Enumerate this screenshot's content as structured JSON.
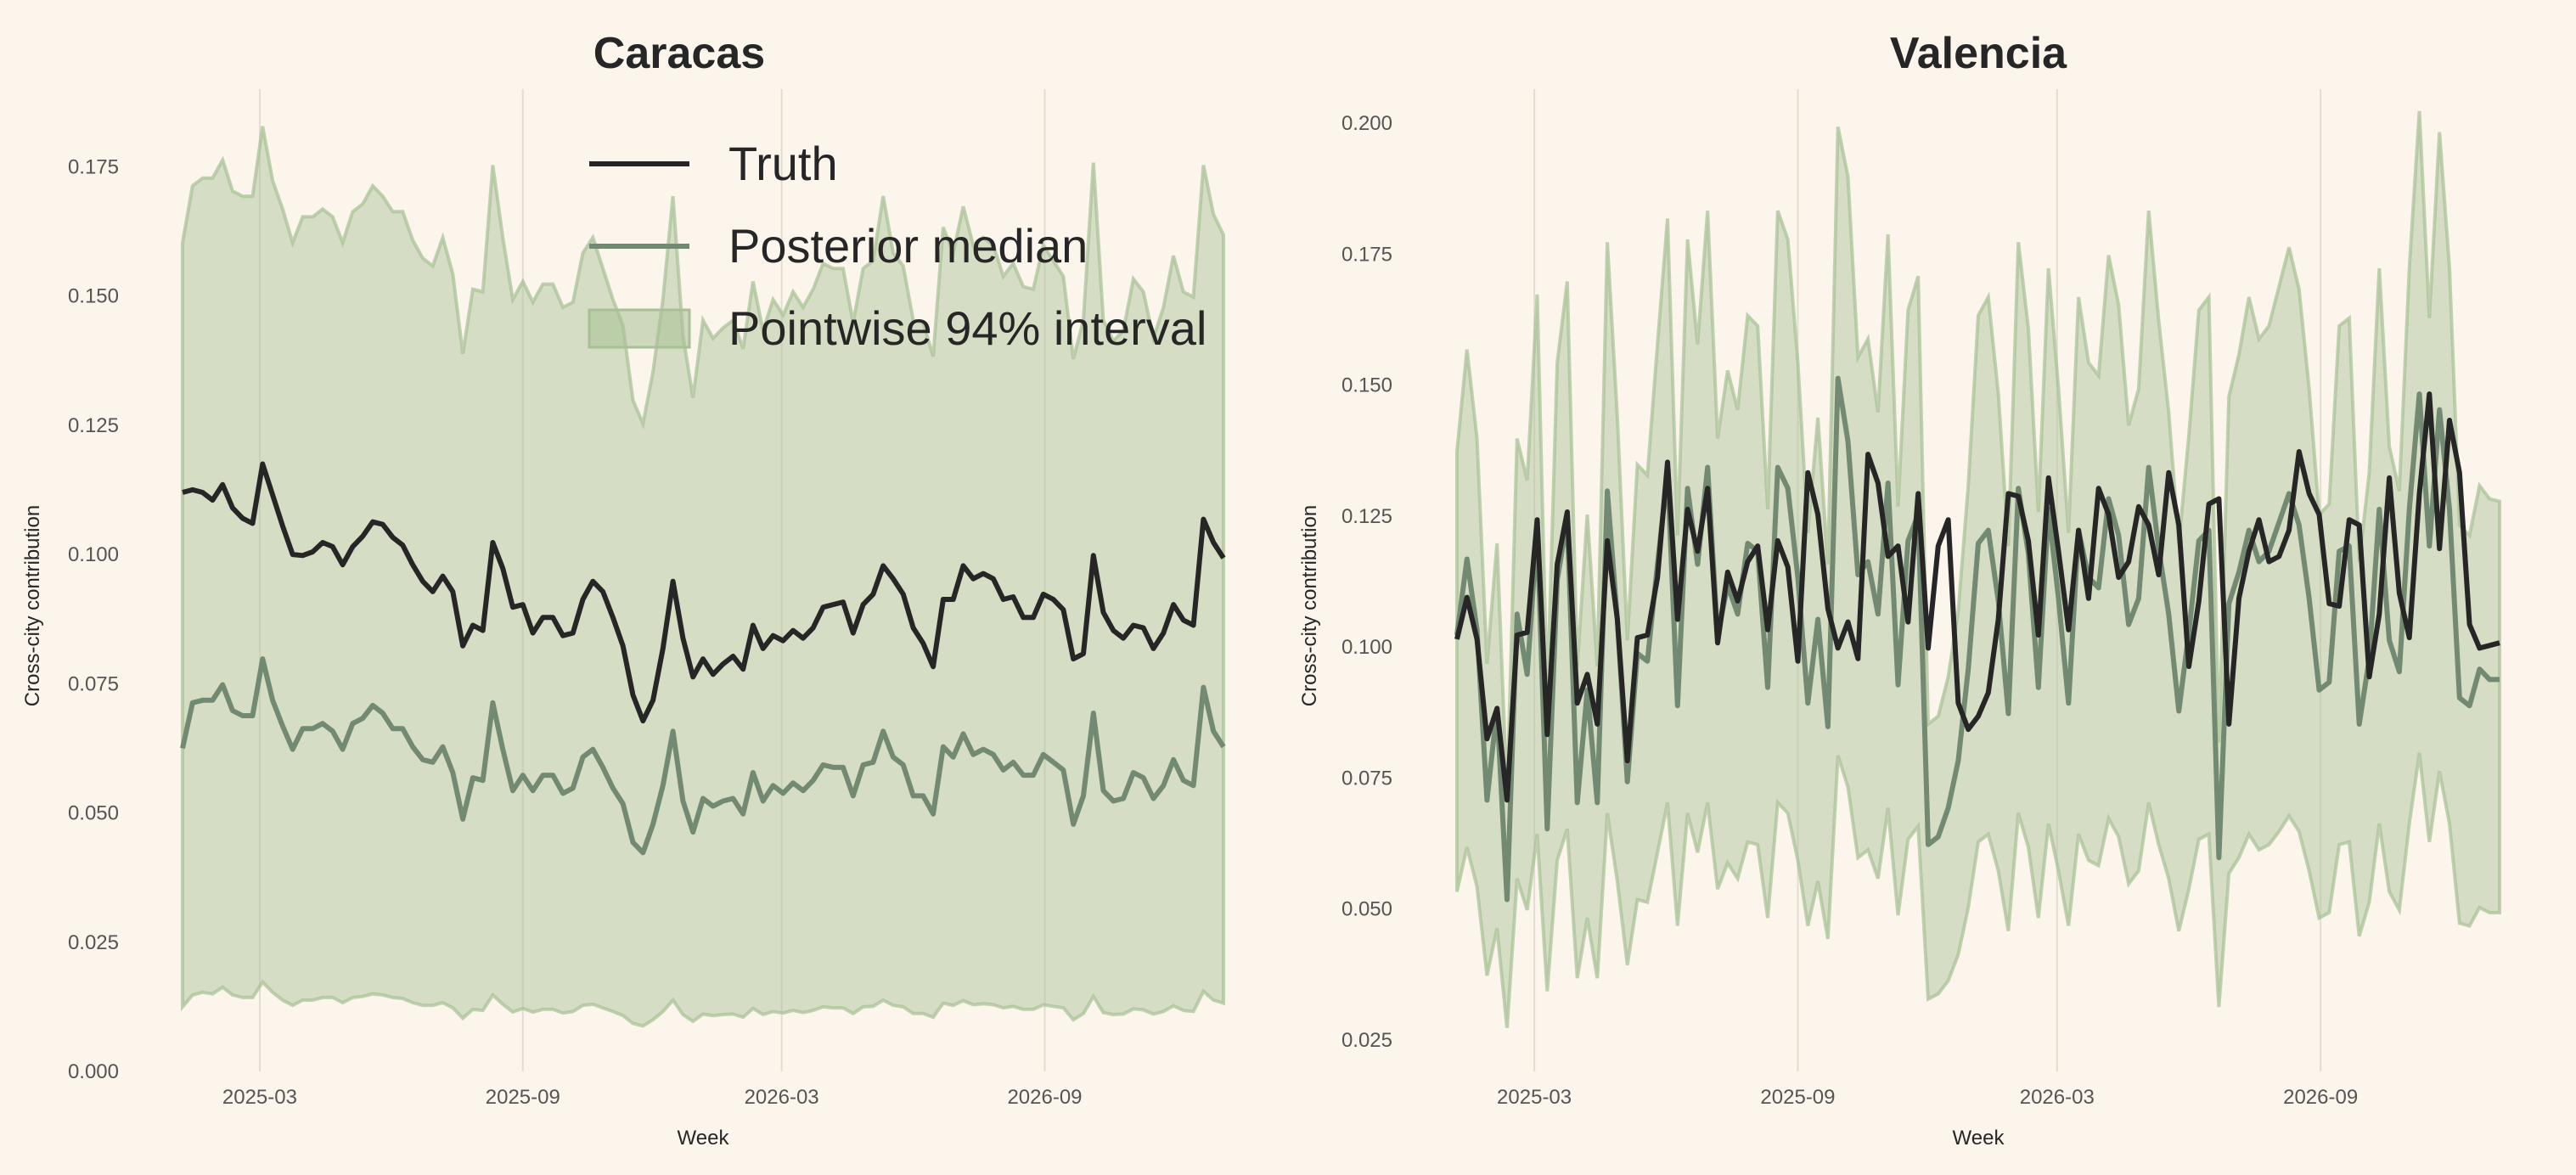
{
  "legend": {
    "truth": "Truth",
    "median": "Posterior median",
    "interval": "Pointwise 94% interval"
  },
  "colors": {
    "background": "#fbf5ec",
    "truth": "#262626",
    "median": "#728a72",
    "interval": "#a7c095"
  },
  "chart_data": [
    {
      "type": "line",
      "title": "Caracas",
      "xlabel": "Week",
      "ylabel": "Cross-city contribution",
      "x_start": "2025-01-06",
      "x_step_days": 7,
      "xticks": [
        "2025-03",
        "2025-09",
        "2026-03",
        "2026-09"
      ],
      "yticks": [
        "0.000",
        "0.025",
        "0.050",
        "0.075",
        "0.100",
        "0.125",
        "0.150",
        "0.175"
      ],
      "ylim": [
        0,
        0.19
      ],
      "grid": "vertical",
      "legend_position": "top-right",
      "series": [
        {
          "name": "Truth",
          "values": [
            0.112,
            0.1125,
            0.112,
            0.1105,
            0.1135,
            0.109,
            0.107,
            0.106,
            0.1175,
            0.1115,
            0.1055,
            0.1,
            0.0998,
            0.1005,
            0.1023,
            0.1015,
            0.098,
            0.1015,
            0.1035,
            0.1063,
            0.1058,
            0.1033,
            0.1018,
            0.098,
            0.0948,
            0.0928,
            0.0958,
            0.0928,
            0.0823,
            0.0863,
            0.0853,
            0.1023,
            0.0973,
            0.0898,
            0.0903,
            0.0848,
            0.0878,
            0.0878,
            0.0843,
            0.0848,
            0.0913,
            0.0948,
            0.0928,
            0.0878,
            0.0823,
            0.0728,
            0.0678,
            0.0718,
            0.0818,
            0.0948,
            0.0838,
            0.0763,
            0.0798,
            0.0768,
            0.0788,
            0.0803,
            0.0778,
            0.0863,
            0.0818,
            0.0843,
            0.0833,
            0.0853,
            0.0838,
            0.0858,
            0.0898,
            0.0903,
            0.0908,
            0.0848,
            0.0903,
            0.0923,
            0.0978,
            0.0953,
            0.0923,
            0.0858,
            0.0828,
            0.0783,
            0.0913,
            0.0913,
            0.0978,
            0.0953,
            0.0963,
            0.0953,
            0.0913,
            0.0918,
            0.0878,
            0.0878,
            0.0923,
            0.0913,
            0.0893,
            0.0798,
            0.0808,
            0.0998,
            0.0888,
            0.0853,
            0.0838,
            0.0863,
            0.0858,
            0.0818,
            0.0848,
            0.0903,
            0.0873,
            0.0863,
            0.1068,
            0.1023,
            0.0993
          ]
        },
        {
          "name": "Posterior median",
          "values": [
            0.0625,
            0.0713,
            0.0718,
            0.0718,
            0.0748,
            0.0698,
            0.0688,
            0.0688,
            0.0798,
            0.0718,
            0.0668,
            0.0623,
            0.0663,
            0.0663,
            0.0673,
            0.0658,
            0.0623,
            0.0673,
            0.0683,
            0.0708,
            0.0693,
            0.0663,
            0.0663,
            0.0628,
            0.0603,
            0.0598,
            0.0628,
            0.0578,
            0.0488,
            0.0568,
            0.0563,
            0.0713,
            0.0623,
            0.0543,
            0.0573,
            0.0543,
            0.0573,
            0.0573,
            0.0538,
            0.0548,
            0.0608,
            0.0623,
            0.0588,
            0.0548,
            0.0518,
            0.0443,
            0.0423,
            0.0478,
            0.0553,
            0.0658,
            0.0523,
            0.0463,
            0.0528,
            0.0513,
            0.0523,
            0.0528,
            0.0498,
            0.0578,
            0.0523,
            0.0553,
            0.0538,
            0.0558,
            0.0543,
            0.0563,
            0.0593,
            0.0588,
            0.0588,
            0.0533,
            0.0593,
            0.0598,
            0.0658,
            0.0608,
            0.0593,
            0.0533,
            0.0533,
            0.0498,
            0.0628,
            0.0608,
            0.0653,
            0.0613,
            0.0623,
            0.0613,
            0.0583,
            0.0598,
            0.0573,
            0.0573,
            0.0613,
            0.0598,
            0.0583,
            0.0478,
            0.0533,
            0.0693,
            0.0543,
            0.0523,
            0.0528,
            0.0578,
            0.0568,
            0.0528,
            0.0553,
            0.0603,
            0.0563,
            0.0553,
            0.0743,
            0.0658,
            0.0628
          ]
        },
        {
          "name": "Pointwise 94% interval",
          "lower": [
            0.0125,
            0.0148,
            0.0153,
            0.015,
            0.0163,
            0.0148,
            0.0143,
            0.0143,
            0.0173,
            0.0153,
            0.0138,
            0.0128,
            0.0138,
            0.0138,
            0.0143,
            0.0143,
            0.0133,
            0.0143,
            0.0145,
            0.015,
            0.0148,
            0.0143,
            0.0141,
            0.0133,
            0.0128,
            0.0128,
            0.0133,
            0.0123,
            0.0103,
            0.012,
            0.0118,
            0.0148,
            0.013,
            0.0115,
            0.0122,
            0.0115,
            0.012,
            0.012,
            0.0113,
            0.0116,
            0.0128,
            0.013,
            0.0123,
            0.0116,
            0.0108,
            0.0093,
            0.0088,
            0.01,
            0.0116,
            0.0138,
            0.011,
            0.0097,
            0.0111,
            0.0108,
            0.011,
            0.0111,
            0.0105,
            0.0122,
            0.011,
            0.0116,
            0.0113,
            0.0118,
            0.0114,
            0.0118,
            0.0125,
            0.0123,
            0.0123,
            0.0112,
            0.0125,
            0.0126,
            0.0138,
            0.0128,
            0.0125,
            0.0112,
            0.0112,
            0.0105,
            0.0132,
            0.0128,
            0.0137,
            0.0129,
            0.0131,
            0.0129,
            0.0123,
            0.0126,
            0.012,
            0.012,
            0.0129,
            0.0126,
            0.0123,
            0.01,
            0.0112,
            0.0145,
            0.0114,
            0.011,
            0.0111,
            0.0121,
            0.0119,
            0.0111,
            0.0116,
            0.0127,
            0.0118,
            0.0116,
            0.0155,
            0.0138,
            0.0132
          ],
          "upper": [
            0.1603,
            0.1713,
            0.1728,
            0.1728,
            0.1763,
            0.1703,
            0.1693,
            0.1693,
            0.1828,
            0.1723,
            0.1668,
            0.1603,
            0.1653,
            0.1653,
            0.1668,
            0.1653,
            0.1603,
            0.1663,
            0.1678,
            0.1713,
            0.1693,
            0.1663,
            0.1663,
            0.1608,
            0.1573,
            0.1558,
            0.1613,
            0.1543,
            0.1388,
            0.1513,
            0.1508,
            0.1753,
            0.1613,
            0.1493,
            0.1528,
            0.1488,
            0.1523,
            0.1523,
            0.1478,
            0.1488,
            0.1583,
            0.1613,
            0.1553,
            0.1493,
            0.1443,
            0.1298,
            0.1253,
            0.1353,
            0.1493,
            0.1693,
            0.1423,
            0.1303,
            0.1453,
            0.1418,
            0.1438,
            0.1453,
            0.1398,
            0.1528,
            0.1433,
            0.1493,
            0.1463,
            0.1508,
            0.1478,
            0.1513,
            0.1563,
            0.1553,
            0.1553,
            0.1448,
            0.1553,
            0.1568,
            0.1693,
            0.1583,
            0.1558,
            0.1453,
            0.1448,
            0.1383,
            0.1633,
            0.1583,
            0.1673,
            0.1598,
            0.1613,
            0.1598,
            0.1538,
            0.1563,
            0.1518,
            0.1513,
            0.1598,
            0.1568,
            0.1538,
            0.1378,
            0.1453,
            0.1758,
            0.1453,
            0.1413,
            0.1433,
            0.1533,
            0.1508,
            0.1418,
            0.1478,
            0.1578,
            0.1508,
            0.1498,
            0.1753,
            0.1658,
            0.1618
          ]
        }
      ]
    },
    {
      "type": "line",
      "title": "Valencia",
      "xlabel": "Week",
      "ylabel": "Cross-city contribution",
      "x_start": "2025-01-06",
      "x_step_days": 7,
      "xticks": [
        "2025-03",
        "2025-09",
        "2026-03",
        "2026-09"
      ],
      "yticks": [
        "0.025",
        "0.050",
        "0.075",
        "0.100",
        "0.125",
        "0.150",
        "0.175",
        "0.200"
      ],
      "ylim": [
        0.019,
        0.2065
      ],
      "grid": "vertical",
      "series": [
        {
          "name": "Truth",
          "values": [
            0.1015,
            0.1095,
            0.1015,
            0.0825,
            0.0883,
            0.0708,
            0.1023,
            0.1028,
            0.1243,
            0.0833,
            0.1158,
            0.1258,
            0.0893,
            0.0948,
            0.0853,
            0.1203,
            0.1053,
            0.0783,
            0.1018,
            0.1023,
            0.1133,
            0.1353,
            0.1053,
            0.1263,
            0.1183,
            0.1303,
            0.1008,
            0.1143,
            0.1088,
            0.1163,
            0.1193,
            0.1033,
            0.1203,
            0.1153,
            0.0973,
            0.1333,
            0.1253,
            0.1073,
            0.0998,
            0.1048,
            0.0978,
            0.1368,
            0.1313,
            0.1173,
            0.1193,
            0.1048,
            0.1293,
            0.0998,
            0.1193,
            0.1243,
            0.0893,
            0.0843,
            0.0868,
            0.0913,
            0.1053,
            0.1293,
            0.1288,
            0.1203,
            0.1023,
            0.1323,
            0.1183,
            0.1033,
            0.1223,
            0.1093,
            0.1303,
            0.1253,
            0.1133,
            0.1163,
            0.1268,
            0.1233,
            0.1138,
            0.1333,
            0.1233,
            0.0963,
            0.1088,
            0.1273,
            0.1283,
            0.0853,
            0.1093,
            0.1183,
            0.1243,
            0.1163,
            0.1173,
            0.1223,
            0.1373,
            0.1293,
            0.1253,
            0.1083,
            0.1078,
            0.1243,
            0.1233,
            0.0943,
            0.1063,
            0.1323,
            0.1103,
            0.1018,
            0.1293,
            0.1483,
            0.1188,
            0.1433,
            0.1333,
            0.1043,
            0.0998,
            0.1003,
            0.1008
          ]
        },
        {
          "name": "Posterior median",
          "values": [
            0.1023,
            0.1168,
            0.1033,
            0.0708,
            0.0883,
            0.0518,
            0.1063,
            0.0948,
            0.1223,
            0.0653,
            0.1128,
            0.1243,
            0.0703,
            0.0918,
            0.0703,
            0.1298,
            0.1053,
            0.0743,
            0.0988,
            0.0973,
            0.1158,
            0.1333,
            0.0888,
            0.1303,
            0.1158,
            0.1343,
            0.1023,
            0.1118,
            0.1063,
            0.1198,
            0.1183,
            0.0923,
            0.1343,
            0.1303,
            0.1133,
            0.0893,
            0.1053,
            0.0848,
            0.1513,
            0.1393,
            0.1138,
            0.1163,
            0.1063,
            0.1313,
            0.0928,
            0.1203,
            0.1253,
            0.0623,
            0.0638,
            0.0693,
            0.0783,
            0.0958,
            0.1198,
            0.1223,
            0.1088,
            0.0873,
            0.1303,
            0.1178,
            0.0923,
            0.1263,
            0.1093,
            0.0893,
            0.1223,
            0.1133,
            0.1113,
            0.1283,
            0.1213,
            0.1043,
            0.1093,
            0.1343,
            0.1188,
            0.1063,
            0.0878,
            0.1028,
            0.1203,
            0.1223,
            0.0598,
            0.1083,
            0.1143,
            0.1223,
            0.1163,
            0.1183,
            0.1238,
            0.1293,
            0.1233,
            0.1093,
            0.0918,
            0.0933,
            0.1183,
            0.1193,
            0.0853,
            0.0978,
            0.1263,
            0.1013,
            0.0953,
            0.1263,
            0.1483,
            0.1193,
            0.1453,
            0.1263,
            0.0903,
            0.0888,
            0.0958,
            0.0938,
            0.0938
          ]
        },
        {
          "name": "Pointwise 94% interval",
          "lower": [
            0.0533,
            0.0618,
            0.0543,
            0.0373,
            0.0463,
            0.0273,
            0.0558,
            0.0498,
            0.0643,
            0.0343,
            0.0593,
            0.0653,
            0.0368,
            0.0483,
            0.0368,
            0.0683,
            0.0553,
            0.0393,
            0.0518,
            0.0513,
            0.0608,
            0.0703,
            0.0468,
            0.0683,
            0.0608,
            0.0703,
            0.0538,
            0.0588,
            0.0558,
            0.0628,
            0.0623,
            0.0483,
            0.0703,
            0.0683,
            0.0593,
            0.0468,
            0.0553,
            0.0443,
            0.0793,
            0.0733,
            0.0598,
            0.0613,
            0.0558,
            0.0693,
            0.0488,
            0.0633,
            0.0658,
            0.0328,
            0.0338,
            0.0363,
            0.0413,
            0.0503,
            0.0628,
            0.0643,
            0.0573,
            0.0458,
            0.0683,
            0.0618,
            0.0483,
            0.0663,
            0.0573,
            0.0468,
            0.0643,
            0.0593,
            0.0583,
            0.0673,
            0.0638,
            0.0548,
            0.0573,
            0.0703,
            0.0623,
            0.0558,
            0.0458,
            0.0538,
            0.0633,
            0.0643,
            0.0313,
            0.0568,
            0.0598,
            0.0643,
            0.0613,
            0.0623,
            0.0648,
            0.0678,
            0.0648,
            0.0573,
            0.0483,
            0.0493,
            0.0623,
            0.0628,
            0.0448,
            0.0513,
            0.0663,
            0.0533,
            0.0498,
            0.0663,
            0.0798,
            0.0628,
            0.0763,
            0.0663,
            0.0473,
            0.0468,
            0.0503,
            0.0493,
            0.0493
          ],
          "upper": [
            0.1373,
            0.1568,
            0.1398,
            0.0968,
            0.1198,
            0.0713,
            0.1398,
            0.1318,
            0.1673,
            0.0903,
            0.1543,
            0.1698,
            0.0963,
            0.1253,
            0.0963,
            0.1773,
            0.1438,
            0.1013,
            0.1348,
            0.1328,
            0.1578,
            0.1818,
            0.1213,
            0.1778,
            0.1578,
            0.1833,
            0.1398,
            0.1528,
            0.1453,
            0.1633,
            0.1613,
            0.1263,
            0.1833,
            0.1778,
            0.1543,
            0.1218,
            0.1438,
            0.1158,
            0.1993,
            0.1898,
            0.1553,
            0.1588,
            0.1448,
            0.1788,
            0.1268,
            0.1643,
            0.1708,
            0.0853,
            0.0868,
            0.0943,
            0.1068,
            0.1308,
            0.1633,
            0.1668,
            0.1483,
            0.1193,
            0.1773,
            0.1608,
            0.1258,
            0.1723,
            0.1493,
            0.1218,
            0.1668,
            0.1543,
            0.1518,
            0.1748,
            0.1653,
            0.1423,
            0.1493,
            0.1833,
            0.1623,
            0.1448,
            0.1198,
            0.1403,
            0.1643,
            0.1668,
            0.0818,
            0.1478,
            0.1558,
            0.1668,
            0.1588,
            0.1613,
            0.1688,
            0.1763,
            0.1683,
            0.1493,
            0.1253,
            0.1273,
            0.1613,
            0.1628,
            0.1163,
            0.1333,
            0.1723,
            0.1383,
            0.1298,
            0.1723,
            0.2023,
            0.1628,
            0.1983,
            0.1723,
            0.1233,
            0.1213,
            0.1308,
            0.1283,
            0.1278
          ]
        }
      ]
    }
  ]
}
